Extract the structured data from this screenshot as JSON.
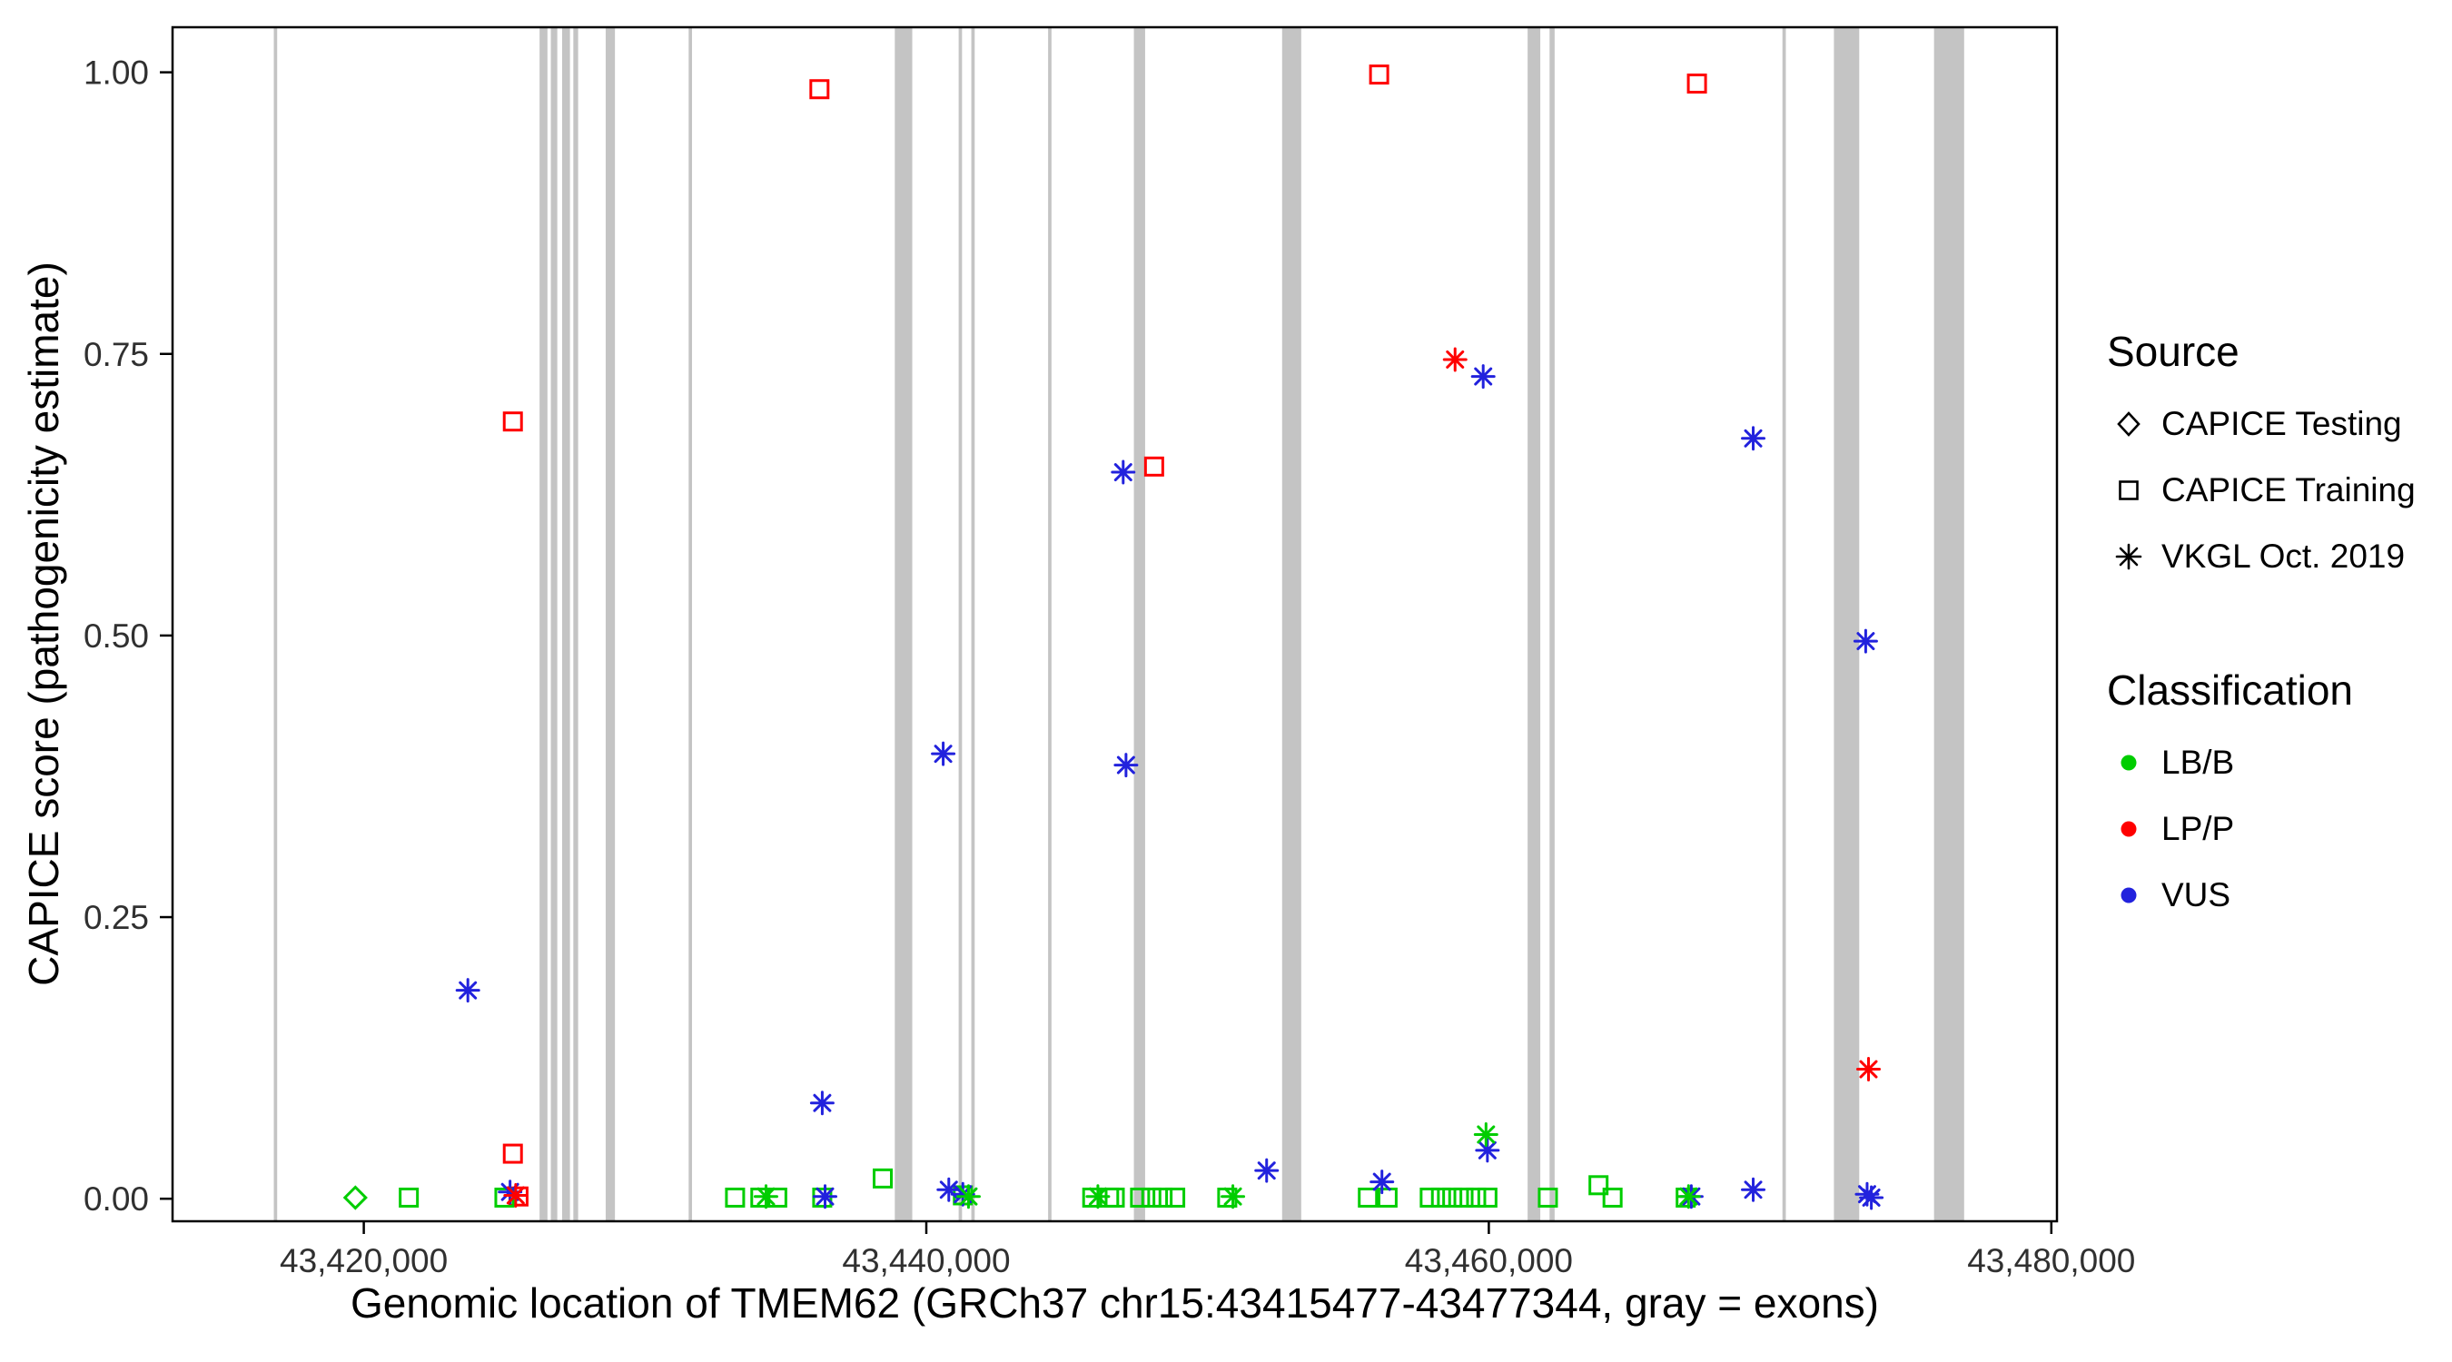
{
  "figure": {
    "background": "#FFFFFF"
  },
  "chart_data": {
    "type": "scatter",
    "title": "",
    "xlabel": "Genomic location of TMEM62 (GRCh37 chr15:43415477-43477344, gray = exons)",
    "ylabel": "CAPICE score (pathogenicity estimate)",
    "xlim": [
      43413200,
      43480200
    ],
    "ylim": [
      -0.02,
      1.04
    ],
    "grid": "off",
    "legend_position": "right",
    "xticks": [
      {
        "value": 43420000,
        "label": "43,420,000"
      },
      {
        "value": 43440000,
        "label": "43,440,000"
      },
      {
        "value": 43460000,
        "label": "43,460,000"
      },
      {
        "value": 43480000,
        "label": "43,480,000"
      }
    ],
    "yticks": [
      {
        "value": 0.0,
        "label": "0.00"
      },
      {
        "value": 0.25,
        "label": "0.25"
      },
      {
        "value": 0.5,
        "label": "0.50"
      },
      {
        "value": 0.75,
        "label": "0.75"
      },
      {
        "value": 1.0,
        "label": "1.00"
      }
    ],
    "exon_color": "#C4C4C4",
    "exons": [
      [
        43416800,
        43416920
      ],
      [
        43426250,
        43426530
      ],
      [
        43426650,
        43426880
      ],
      [
        43427050,
        43427330
      ],
      [
        43427450,
        43427620
      ],
      [
        43428600,
        43428930
      ],
      [
        43431550,
        43431670
      ],
      [
        43438880,
        43439500
      ],
      [
        43441150,
        43441270
      ],
      [
        43441600,
        43441720
      ],
      [
        43444330,
        43444450
      ],
      [
        43447380,
        43447780
      ],
      [
        43452650,
        43453330
      ],
      [
        43461380,
        43461830
      ],
      [
        43462160,
        43462340
      ],
      [
        43470440,
        43470560
      ],
      [
        43472270,
        43473170
      ],
      [
        43475830,
        43476900
      ]
    ],
    "shape_by_source": {
      "CAPICE Testing": "diamond",
      "CAPICE Training": "square",
      "VKGL Oct. 2019": "asterisk"
    },
    "color_by_class": {
      "LB/B": "#00CD00",
      "LP/P": "#FF0000",
      "VUS": "#2222DD"
    },
    "points": [
      {
        "x": 43419700,
        "y": 0.001,
        "source": "CAPICE Testing",
        "classification": "LB/B"
      },
      {
        "x": 43425300,
        "y": 0.69,
        "source": "CAPICE Training",
        "classification": "LP/P"
      },
      {
        "x": 43425300,
        "y": 0.04,
        "source": "CAPICE Training",
        "classification": "LP/P"
      },
      {
        "x": 43425500,
        "y": 0.002,
        "source": "CAPICE Training",
        "classification": "LP/P"
      },
      {
        "x": 43436200,
        "y": 0.985,
        "source": "CAPICE Training",
        "classification": "LP/P"
      },
      {
        "x": 43448100,
        "y": 0.65,
        "source": "CAPICE Training",
        "classification": "LP/P"
      },
      {
        "x": 43456100,
        "y": 0.998,
        "source": "CAPICE Training",
        "classification": "LP/P"
      },
      {
        "x": 43467400,
        "y": 0.99,
        "source": "CAPICE Training",
        "classification": "LP/P"
      },
      {
        "x": 43421600,
        "y": 0.001,
        "source": "CAPICE Training",
        "classification": "LB/B"
      },
      {
        "x": 43425000,
        "y": 0.001,
        "source": "CAPICE Training",
        "classification": "LB/B"
      },
      {
        "x": 43433200,
        "y": 0.001,
        "source": "CAPICE Training",
        "classification": "LB/B"
      },
      {
        "x": 43434100,
        "y": 0.001,
        "source": "CAPICE Training",
        "classification": "LB/B"
      },
      {
        "x": 43434700,
        "y": 0.001,
        "source": "CAPICE Training",
        "classification": "LB/B"
      },
      {
        "x": 43436300,
        "y": 0.001,
        "source": "CAPICE Training",
        "classification": "LB/B"
      },
      {
        "x": 43438450,
        "y": 0.018,
        "source": "CAPICE Training",
        "classification": "LB/B"
      },
      {
        "x": 43441300,
        "y": 0.003,
        "source": "CAPICE Training",
        "classification": "LB/B"
      },
      {
        "x": 43445900,
        "y": 0.001,
        "source": "CAPICE Training",
        "classification": "LB/B"
      },
      {
        "x": 43446500,
        "y": 0.001,
        "source": "CAPICE Training",
        "classification": "LB/B"
      },
      {
        "x": 43446700,
        "y": 0.001,
        "source": "CAPICE Training",
        "classification": "LB/B"
      },
      {
        "x": 43447600,
        "y": 0.001,
        "source": "CAPICE Training",
        "classification": "LB/B"
      },
      {
        "x": 43448000,
        "y": 0.001,
        "source": "CAPICE Training",
        "classification": "LB/B"
      },
      {
        "x": 43448400,
        "y": 0.001,
        "source": "CAPICE Training",
        "classification": "LB/B"
      },
      {
        "x": 43448850,
        "y": 0.001,
        "source": "CAPICE Training",
        "classification": "LB/B"
      },
      {
        "x": 43450700,
        "y": 0.001,
        "source": "CAPICE Training",
        "classification": "LB/B"
      },
      {
        "x": 43455700,
        "y": 0.001,
        "source": "CAPICE Training",
        "classification": "LB/B"
      },
      {
        "x": 43456400,
        "y": 0.001,
        "source": "CAPICE Training",
        "classification": "LB/B"
      },
      {
        "x": 43457900,
        "y": 0.001,
        "source": "CAPICE Training",
        "classification": "LB/B"
      },
      {
        "x": 43458300,
        "y": 0.001,
        "source": "CAPICE Training",
        "classification": "LB/B"
      },
      {
        "x": 43458700,
        "y": 0.001,
        "source": "CAPICE Training",
        "classification": "LB/B"
      },
      {
        "x": 43459100,
        "y": 0.001,
        "source": "CAPICE Training",
        "classification": "LB/B"
      },
      {
        "x": 43459550,
        "y": 0.001,
        "source": "CAPICE Training",
        "classification": "LB/B"
      },
      {
        "x": 43459950,
        "y": 0.001,
        "source": "CAPICE Training",
        "classification": "LB/B"
      },
      {
        "x": 43462100,
        "y": 0.001,
        "source": "CAPICE Training",
        "classification": "LB/B"
      },
      {
        "x": 43463900,
        "y": 0.012,
        "source": "CAPICE Training",
        "classification": "LB/B"
      },
      {
        "x": 43464400,
        "y": 0.001,
        "source": "CAPICE Training",
        "classification": "LB/B"
      },
      {
        "x": 43467000,
        "y": 0.001,
        "source": "CAPICE Training",
        "classification": "LB/B"
      },
      {
        "x": 43423700,
        "y": 0.185,
        "source": "VKGL Oct. 2019",
        "classification": "VUS"
      },
      {
        "x": 43425200,
        "y": 0.006,
        "source": "VKGL Oct. 2019",
        "classification": "VUS"
      },
      {
        "x": 43436300,
        "y": 0.085,
        "source": "VKGL Oct. 2019",
        "classification": "VUS"
      },
      {
        "x": 43436400,
        "y": 0.002,
        "source": "VKGL Oct. 2019",
        "classification": "VUS"
      },
      {
        "x": 43440600,
        "y": 0.395,
        "source": "VKGL Oct. 2019",
        "classification": "VUS"
      },
      {
        "x": 43440800,
        "y": 0.008,
        "source": "VKGL Oct. 2019",
        "classification": "VUS"
      },
      {
        "x": 43441300,
        "y": 0.004,
        "source": "VKGL Oct. 2019",
        "classification": "VUS"
      },
      {
        "x": 43447000,
        "y": 0.645,
        "source": "VKGL Oct. 2019",
        "classification": "VUS"
      },
      {
        "x": 43447100,
        "y": 0.385,
        "source": "VKGL Oct. 2019",
        "classification": "VUS"
      },
      {
        "x": 43452100,
        "y": 0.025,
        "source": "VKGL Oct. 2019",
        "classification": "VUS"
      },
      {
        "x": 43456200,
        "y": 0.015,
        "source": "VKGL Oct. 2019",
        "classification": "VUS"
      },
      {
        "x": 43459800,
        "y": 0.73,
        "source": "VKGL Oct. 2019",
        "classification": "VUS"
      },
      {
        "x": 43459950,
        "y": 0.043,
        "source": "VKGL Oct. 2019",
        "classification": "VUS"
      },
      {
        "x": 43467200,
        "y": 0.002,
        "source": "VKGL Oct. 2019",
        "classification": "VUS"
      },
      {
        "x": 43469400,
        "y": 0.675,
        "source": "VKGL Oct. 2019",
        "classification": "VUS"
      },
      {
        "x": 43469400,
        "y": 0.008,
        "source": "VKGL Oct. 2019",
        "classification": "VUS"
      },
      {
        "x": 43473400,
        "y": 0.495,
        "source": "VKGL Oct. 2019",
        "classification": "VUS"
      },
      {
        "x": 43473450,
        "y": 0.004,
        "source": "VKGL Oct. 2019",
        "classification": "VUS"
      },
      {
        "x": 43473600,
        "y": 0.001,
        "source": "VKGL Oct. 2019",
        "classification": "VUS"
      },
      {
        "x": 43458800,
        "y": 0.745,
        "source": "VKGL Oct. 2019",
        "classification": "LP/P"
      },
      {
        "x": 43473500,
        "y": 0.115,
        "source": "VKGL Oct. 2019",
        "classification": "LP/P"
      },
      {
        "x": 43425400,
        "y": 0.003,
        "source": "VKGL Oct. 2019",
        "classification": "LP/P"
      },
      {
        "x": 43434300,
        "y": 0.002,
        "source": "VKGL Oct. 2019",
        "classification": "LB/B"
      },
      {
        "x": 43441500,
        "y": 0.002,
        "source": "VKGL Oct. 2019",
        "classification": "LB/B"
      },
      {
        "x": 43446100,
        "y": 0.002,
        "source": "VKGL Oct. 2019",
        "classification": "LB/B"
      },
      {
        "x": 43450900,
        "y": 0.002,
        "source": "VKGL Oct. 2019",
        "classification": "LB/B"
      },
      {
        "x": 43459900,
        "y": 0.057,
        "source": "VKGL Oct. 2019",
        "classification": "LB/B"
      },
      {
        "x": 43467100,
        "y": 0.002,
        "source": "VKGL Oct. 2019",
        "classification": "LB/B"
      }
    ]
  },
  "legend": {
    "source": {
      "title": "Source",
      "items": [
        {
          "label": "CAPICE Testing",
          "shape": "diamond"
        },
        {
          "label": "CAPICE Training",
          "shape": "square"
        },
        {
          "label": "VKGL Oct. 2019",
          "shape": "asterisk"
        }
      ]
    },
    "classification": {
      "title": "Classification",
      "items": [
        {
          "label": "LB/B",
          "color": "#00CD00"
        },
        {
          "label": "LP/P",
          "color": "#FF0000"
        },
        {
          "label": "VUS",
          "color": "#2222DD"
        }
      ]
    }
  }
}
